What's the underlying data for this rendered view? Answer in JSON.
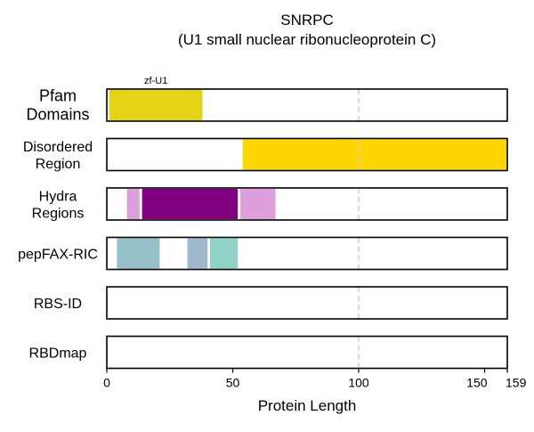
{
  "chart_data": {
    "type": "bar",
    "title": "SNRPC",
    "subtitle": "(U1 small nuclear ribonucleoprotein C)",
    "xlabel": "Protein Length",
    "xlim": [
      0,
      159
    ],
    "x_ticks": [
      {
        "value": 0,
        "label": "0"
      },
      {
        "value": 50,
        "label": "50"
      },
      {
        "value": 100,
        "label": "100"
      },
      {
        "value": 150,
        "label": "150"
      },
      {
        "value": 159,
        "label": "159"
      }
    ],
    "reference_line": {
      "value": 100,
      "style": "dashed",
      "color": "#cccccc"
    },
    "grid": false,
    "tracks": [
      {
        "name_lines": [
          "Pfam",
          "Domains"
        ],
        "label_size": "large",
        "segments": [
          {
            "start": 1,
            "end": 38,
            "color": "#e3d417",
            "label": "zf-U1"
          }
        ]
      },
      {
        "name_lines": [
          "Disordered",
          "Region"
        ],
        "label_size": "normal",
        "segments": [
          {
            "start": 54,
            "end": 159,
            "color": "#ffd700"
          }
        ]
      },
      {
        "name_lines": [
          "Hydra",
          "Regions"
        ],
        "label_size": "normal",
        "segments": [
          {
            "start": 8,
            "end": 13,
            "color": "#dda0dd"
          },
          {
            "start": 14,
            "end": 52,
            "color": "#800080"
          },
          {
            "start": 53,
            "end": 67,
            "color": "#dda0dd"
          }
        ]
      },
      {
        "name_lines": [
          "pepFAX-RIC"
        ],
        "label_size": "normal",
        "segments": [
          {
            "start": 4,
            "end": 21,
            "color": "#96c1c8"
          },
          {
            "start": 32,
            "end": 40,
            "color": "#9db9cb"
          },
          {
            "start": 41,
            "end": 52,
            "color": "#90d2c5"
          }
        ]
      },
      {
        "name_lines": [
          "RBS-ID"
        ],
        "label_size": "normal",
        "segments": []
      },
      {
        "name_lines": [
          "RBDmap"
        ],
        "label_size": "normal",
        "segments": []
      }
    ]
  }
}
